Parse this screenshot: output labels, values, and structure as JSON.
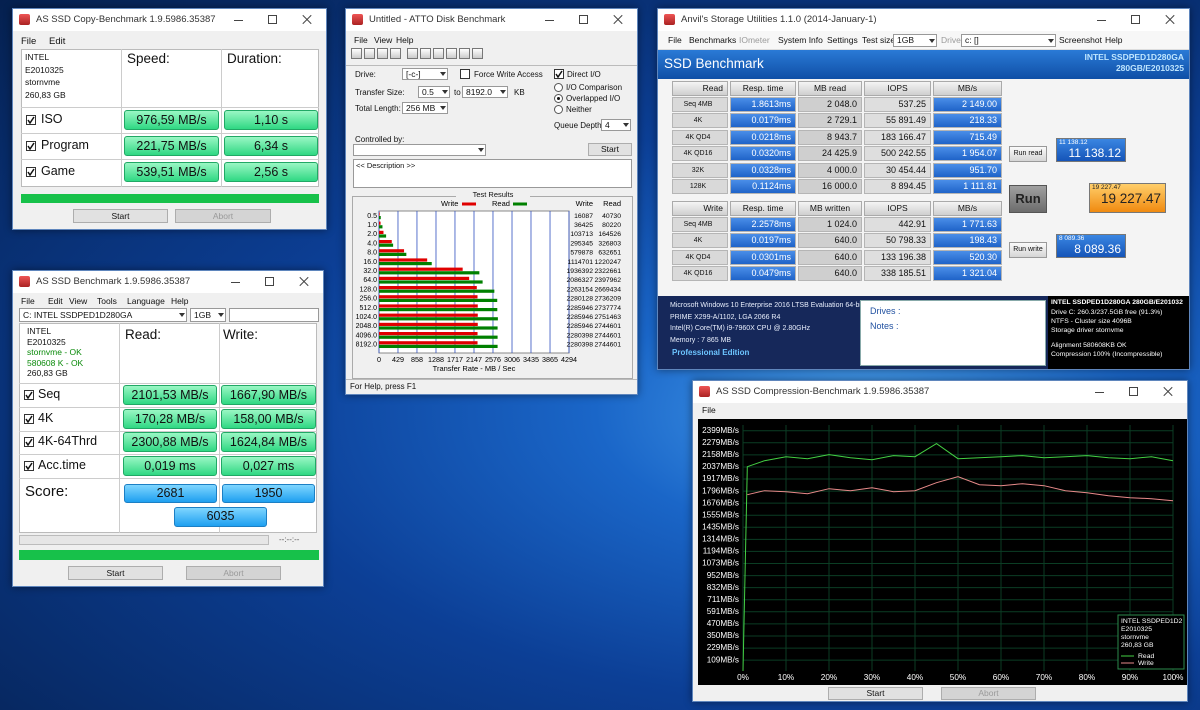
{
  "copy_bench": {
    "title": "AS SSD Copy-Benchmark 1.9.5986.35387",
    "menu": [
      "File",
      "Edit"
    ],
    "info": [
      "INTEL",
      "E2010325",
      "stornvme",
      "260,83 GB"
    ],
    "headers": [
      "Speed:",
      "Duration:"
    ],
    "rows": [
      {
        "name": "ISO",
        "speed": "976,59 MB/s",
        "duration": "1,10 s"
      },
      {
        "name": "Program",
        "speed": "221,75 MB/s",
        "duration": "6,34 s"
      },
      {
        "name": "Game",
        "speed": "539,51 MB/s",
        "duration": "2,56 s"
      }
    ],
    "buttons": [
      "Start",
      "Abort"
    ]
  },
  "as_ssd": {
    "title": "AS SSD Benchmark 1.9.5986.35387",
    "menu": [
      "File",
      "Edit",
      "View",
      "Tools",
      "Language",
      "Help"
    ],
    "drive": "C: INTEL SSDPED1D280GA",
    "size": "1GB",
    "info": [
      "INTEL",
      "E2010325",
      "stornvme - OK",
      "580608 K - OK",
      "260,83 GB"
    ],
    "headers": [
      "Read:",
      "Write:"
    ],
    "rows": [
      {
        "name": "Seq",
        "read": "2101,53 MB/s",
        "write": "1667,90 MB/s"
      },
      {
        "name": "4K",
        "read": "170,28 MB/s",
        "write": "158,00 MB/s"
      },
      {
        "name": "4K-64Thrd",
        "read": "2300,88 MB/s",
        "write": "1624,84 MB/s"
      },
      {
        "name": "Acc.time",
        "read": "0,019 ms",
        "write": "0,027 ms"
      }
    ],
    "score_label": "Score:",
    "scores": [
      "2681",
      "1950",
      "6035"
    ],
    "time": "--:--:--",
    "buttons": [
      "Start",
      "Abort"
    ]
  },
  "atto": {
    "title": "Untitled - ATTO Disk Benchmark",
    "menu": [
      "File",
      "View",
      "Help"
    ],
    "drive_label": "Drive:",
    "drive": "[-c-]",
    "force_write": "Force Write Access",
    "force_write_checked": false,
    "direct_io": "Direct I/O",
    "direct_io_checked": true,
    "transfer_label": "Transfer Size:",
    "transfer_from": "0.5",
    "to": "to",
    "transfer_to": "8192.0",
    "kb": "KB",
    "length_label": "Total Length:",
    "length": "256 MB",
    "io_options": [
      "I/O Comparison",
      "Overlapped I/O",
      "Neither"
    ],
    "io_selected": 1,
    "queue_label": "Queue Depth:",
    "queue": "4",
    "controlled_label": "Controlled by:",
    "start": "Start",
    "description": "<< Description >>",
    "status": "For Help, press F1",
    "chart": {
      "type": "bar",
      "title": "Test Results",
      "categories": [
        "0.5",
        "1.0",
        "2.0",
        "4.0",
        "8.0",
        "16.0",
        "32.0",
        "64.0",
        "128.0",
        "256.0",
        "512.0",
        "1024.0",
        "2048.0",
        "4096.0",
        "8192.0"
      ],
      "series": [
        {
          "name": "Write",
          "color": "#e00000",
          "values": [
            16087,
            36425,
            103713,
            295345,
            579878,
            1114701,
            1936392,
            2086327,
            2263154,
            2280128,
            2285946,
            2285946,
            2285946,
            2280398,
            2280398
          ]
        },
        {
          "name": "Read",
          "color": "#008000",
          "values": [
            40730,
            80220,
            164526,
            326803,
            632651,
            1220247,
            2322661,
            2397962,
            2669434,
            2736209,
            2737774,
            2751463,
            2744601,
            2744601,
            2744601
          ]
        }
      ],
      "xlim": [
        0,
        4294
      ],
      "xticks": [
        0,
        429,
        858,
        1288,
        1717,
        2147,
        2576,
        3006,
        3435,
        3865,
        4294
      ],
      "xlabel": "Transfer Rate - MB / Sec"
    }
  },
  "anvil": {
    "title": "Anvil's Storage Utilities 1.1.0 (2014-January-1)",
    "menu": [
      "File",
      "Benchmarks",
      "IOmeter",
      "System Info",
      "Settings",
      "Test size",
      "Drive",
      "Screenshot",
      "Help"
    ],
    "test_size": "1GB",
    "drive": "c: []",
    "header": "SSD Benchmark",
    "model": "INTEL SSDPED1D280GA",
    "model_sub": "280GB/E2010325",
    "read_table": {
      "headers": [
        "Read",
        "Resp. time",
        "MB read",
        "IOPS",
        "MB/s"
      ],
      "rows": [
        [
          "Seq 4MB",
          "1.8613ms",
          "2 048.0",
          "537.25",
          "2 149.00"
        ],
        [
          "4K",
          "0.0179ms",
          "2 729.1",
          "55 891.49",
          "218.33"
        ],
        [
          "4K QD4",
          "0.0218ms",
          "8 943.7",
          "183 166.47",
          "715.49"
        ],
        [
          "4K QD16",
          "0.0320ms",
          "24 425.9",
          "500 242.55",
          "1 954.07"
        ],
        [
          "32K",
          "0.0328ms",
          "4 000.0",
          "30 454.44",
          "951.70"
        ],
        [
          "128K",
          "0.1124ms",
          "16 000.0",
          "8 894.45",
          "1 111.81"
        ]
      ]
    },
    "write_table": {
      "headers": [
        "Write",
        "Resp. time",
        "MB written",
        "IOPS",
        "MB/s"
      ],
      "rows": [
        [
          "Seq 4MB",
          "2.2578ms",
          "1 024.0",
          "442.91",
          "1 771.63"
        ],
        [
          "4K",
          "0.0197ms",
          "640.0",
          "50 798.33",
          "198.43"
        ],
        [
          "4K QD4",
          "0.0301ms",
          "640.0",
          "133 196.38",
          "520.30"
        ],
        [
          "4K QD16",
          "0.0479ms",
          "640.0",
          "338 185.51",
          "1 321.04"
        ]
      ]
    },
    "run_read": "Run read",
    "read_score": "11 138.12",
    "run": "Run",
    "total_score": "19 227.47",
    "run_write": "Run write",
    "write_score": "8 089.36",
    "system_info": [
      "Microsoft Windows 10 Enterprise 2016 LTSB Evaluation 64-bit Bu",
      "PRIME X299-A/1102, LGA 2066 R4",
      "Intel(R) Core(TM) i9-7960X CPU @ 2.80GHz",
      "Memory : 7 865 MB"
    ],
    "edition": "Professional Edition",
    "drives_label": "Drives :",
    "notes_label": "Notes :",
    "drive_info": [
      "INTEL SSDPED1D280GA 280GB/E201032",
      "Drive C: 260.3/237.5GB free (91.3%)",
      "NTFS - Cluster size 4096B",
      "Storage driver  stornvme",
      "Alignment 580608KB OK",
      "Compression 100% (Incompressible)"
    ]
  },
  "compression": {
    "title": "AS SSD Compression-Benchmark 1.9.5986.35387",
    "menu": [
      "File"
    ],
    "chart": {
      "type": "line",
      "x": [
        0,
        1,
        5,
        10,
        15,
        20,
        25,
        30,
        35,
        40,
        45,
        50,
        55,
        60,
        65,
        70,
        75,
        80,
        85,
        90,
        95,
        100
      ],
      "series": [
        {
          "name": "Read",
          "color": "#44d044",
          "values": [
            0,
            2040,
            2100,
            2140,
            2120,
            2160,
            2130,
            2110,
            2150,
            2140,
            2270,
            2120,
            2130,
            2140,
            2150,
            2130,
            2140,
            2150,
            2130,
            2120,
            2140,
            2100
          ]
        },
        {
          "name": "Write",
          "color": "#e88a8a",
          "values": [
            null,
            1760,
            1800,
            1790,
            1770,
            1820,
            1800,
            1830,
            1790,
            1800,
            1880,
            1940,
            1860,
            1850,
            1870,
            1850,
            1800,
            1780,
            1750,
            1730,
            1720,
            1700
          ]
        }
      ],
      "xlim": [
        0,
        100
      ],
      "xticks": [
        {
          "value": 0,
          "label": "0%"
        },
        {
          "value": 10,
          "label": "10%"
        },
        {
          "value": 20,
          "label": "20%"
        },
        {
          "value": 30,
          "label": "30%"
        },
        {
          "value": 40,
          "label": "40%"
        },
        {
          "value": 50,
          "label": "50%"
        },
        {
          "value": 60,
          "label": "60%"
        },
        {
          "value": 70,
          "label": "70%"
        },
        {
          "value": 80,
          "label": "80%"
        },
        {
          "value": 90,
          "label": "90%"
        },
        {
          "value": 100,
          "label": "100%"
        }
      ],
      "ylim": [
        0,
        2456
      ],
      "yticks": [
        {
          "value": 2399,
          "label": "2399MB/s"
        },
        {
          "value": 2279,
          "label": "2279MB/s"
        },
        {
          "value": 2158,
          "label": "2158MB/s"
        },
        {
          "value": 2037,
          "label": "2037MB/s"
        },
        {
          "value": 1917,
          "label": "1917MB/s"
        },
        {
          "value": 1796,
          "label": "1796MB/s"
        },
        {
          "value": 1676,
          "label": "1676MB/s"
        },
        {
          "value": 1555,
          "label": "1555MB/s"
        },
        {
          "value": 1435,
          "label": "1435MB/s"
        },
        {
          "value": 1314,
          "label": "1314MB/s"
        },
        {
          "value": 1194,
          "label": "1194MB/s"
        },
        {
          "value": 1073,
          "label": "1073MB/s"
        },
        {
          "value": 952,
          "label": "952MB/s"
        },
        {
          "value": 832,
          "label": "832MB/s"
        },
        {
          "value": 711,
          "label": "711MB/s"
        },
        {
          "value": 591,
          "label": "591MB/s"
        },
        {
          "value": 470,
          "label": "470MB/s"
        },
        {
          "value": 350,
          "label": "350MB/s"
        },
        {
          "value": 229,
          "label": "229MB/s"
        },
        {
          "value": 109,
          "label": "109MB/s"
        }
      ],
      "grid": true
    },
    "legend_info": [
      "INTEL SSDPED1D2",
      "E2010325",
      "stornvme",
      "260,83 GB"
    ],
    "buttons": [
      "Start",
      "Abort"
    ]
  }
}
